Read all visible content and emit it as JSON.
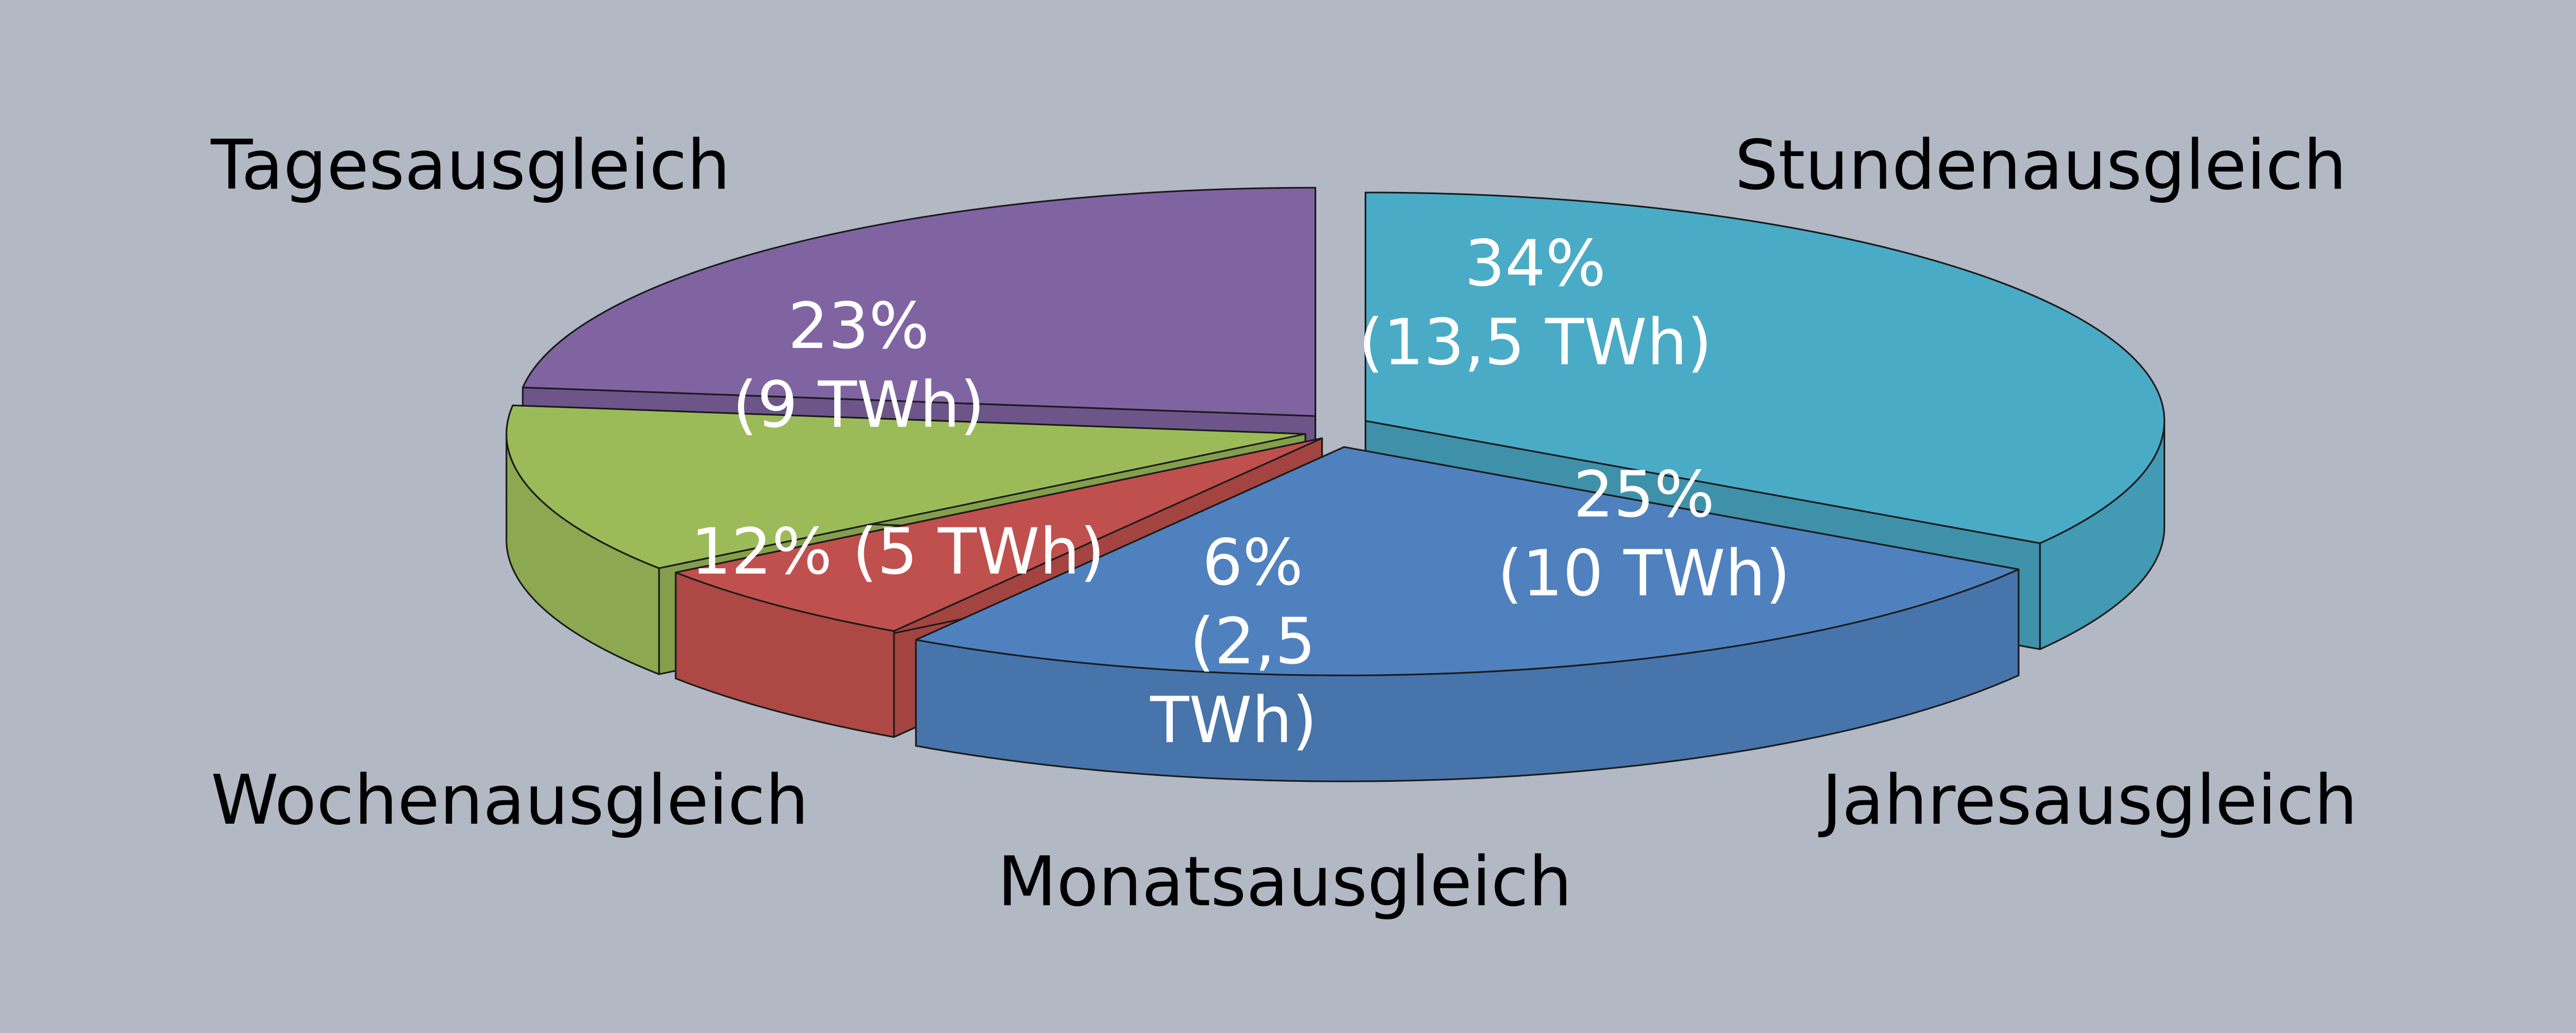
{
  "chart_data": {
    "type": "pie",
    "title": "",
    "unit": "TWh",
    "slices": [
      {
        "name": "Stundenausgleich",
        "percent": 34,
        "value": 13.5,
        "percent_label": "34%",
        "value_label": "(13,5 TWh)",
        "color": "#4aabc7"
      },
      {
        "name": "Jahresausgleich",
        "percent": 25,
        "value": 10,
        "percent_label": "25%",
        "value_label": "(10 TWh)",
        "color": "#4f81be"
      },
      {
        "name": "Monatsausgleich",
        "percent": 6,
        "value": 2.5,
        "percent_label": "6%",
        "value_label": "(2,5 TWh)",
        "value_label_lines": [
          "(2,5",
          "TWh)"
        ],
        "color": "#c0504d"
      },
      {
        "name": "Wochenausgleich",
        "percent": 12,
        "value": 5,
        "percent_label": "12%",
        "value_label": "(5 TWh)",
        "combined_label": "12% (5 TWh)",
        "color": "#9bbb59"
      },
      {
        "name": "Tagesausgleich",
        "percent": 23,
        "value": 9,
        "percent_label": "23%",
        "value_label": "(9 TWh)",
        "color": "#8064a2"
      }
    ],
    "background": "#b2b8c4",
    "legend": "none",
    "exploded": true,
    "three_d": true
  }
}
